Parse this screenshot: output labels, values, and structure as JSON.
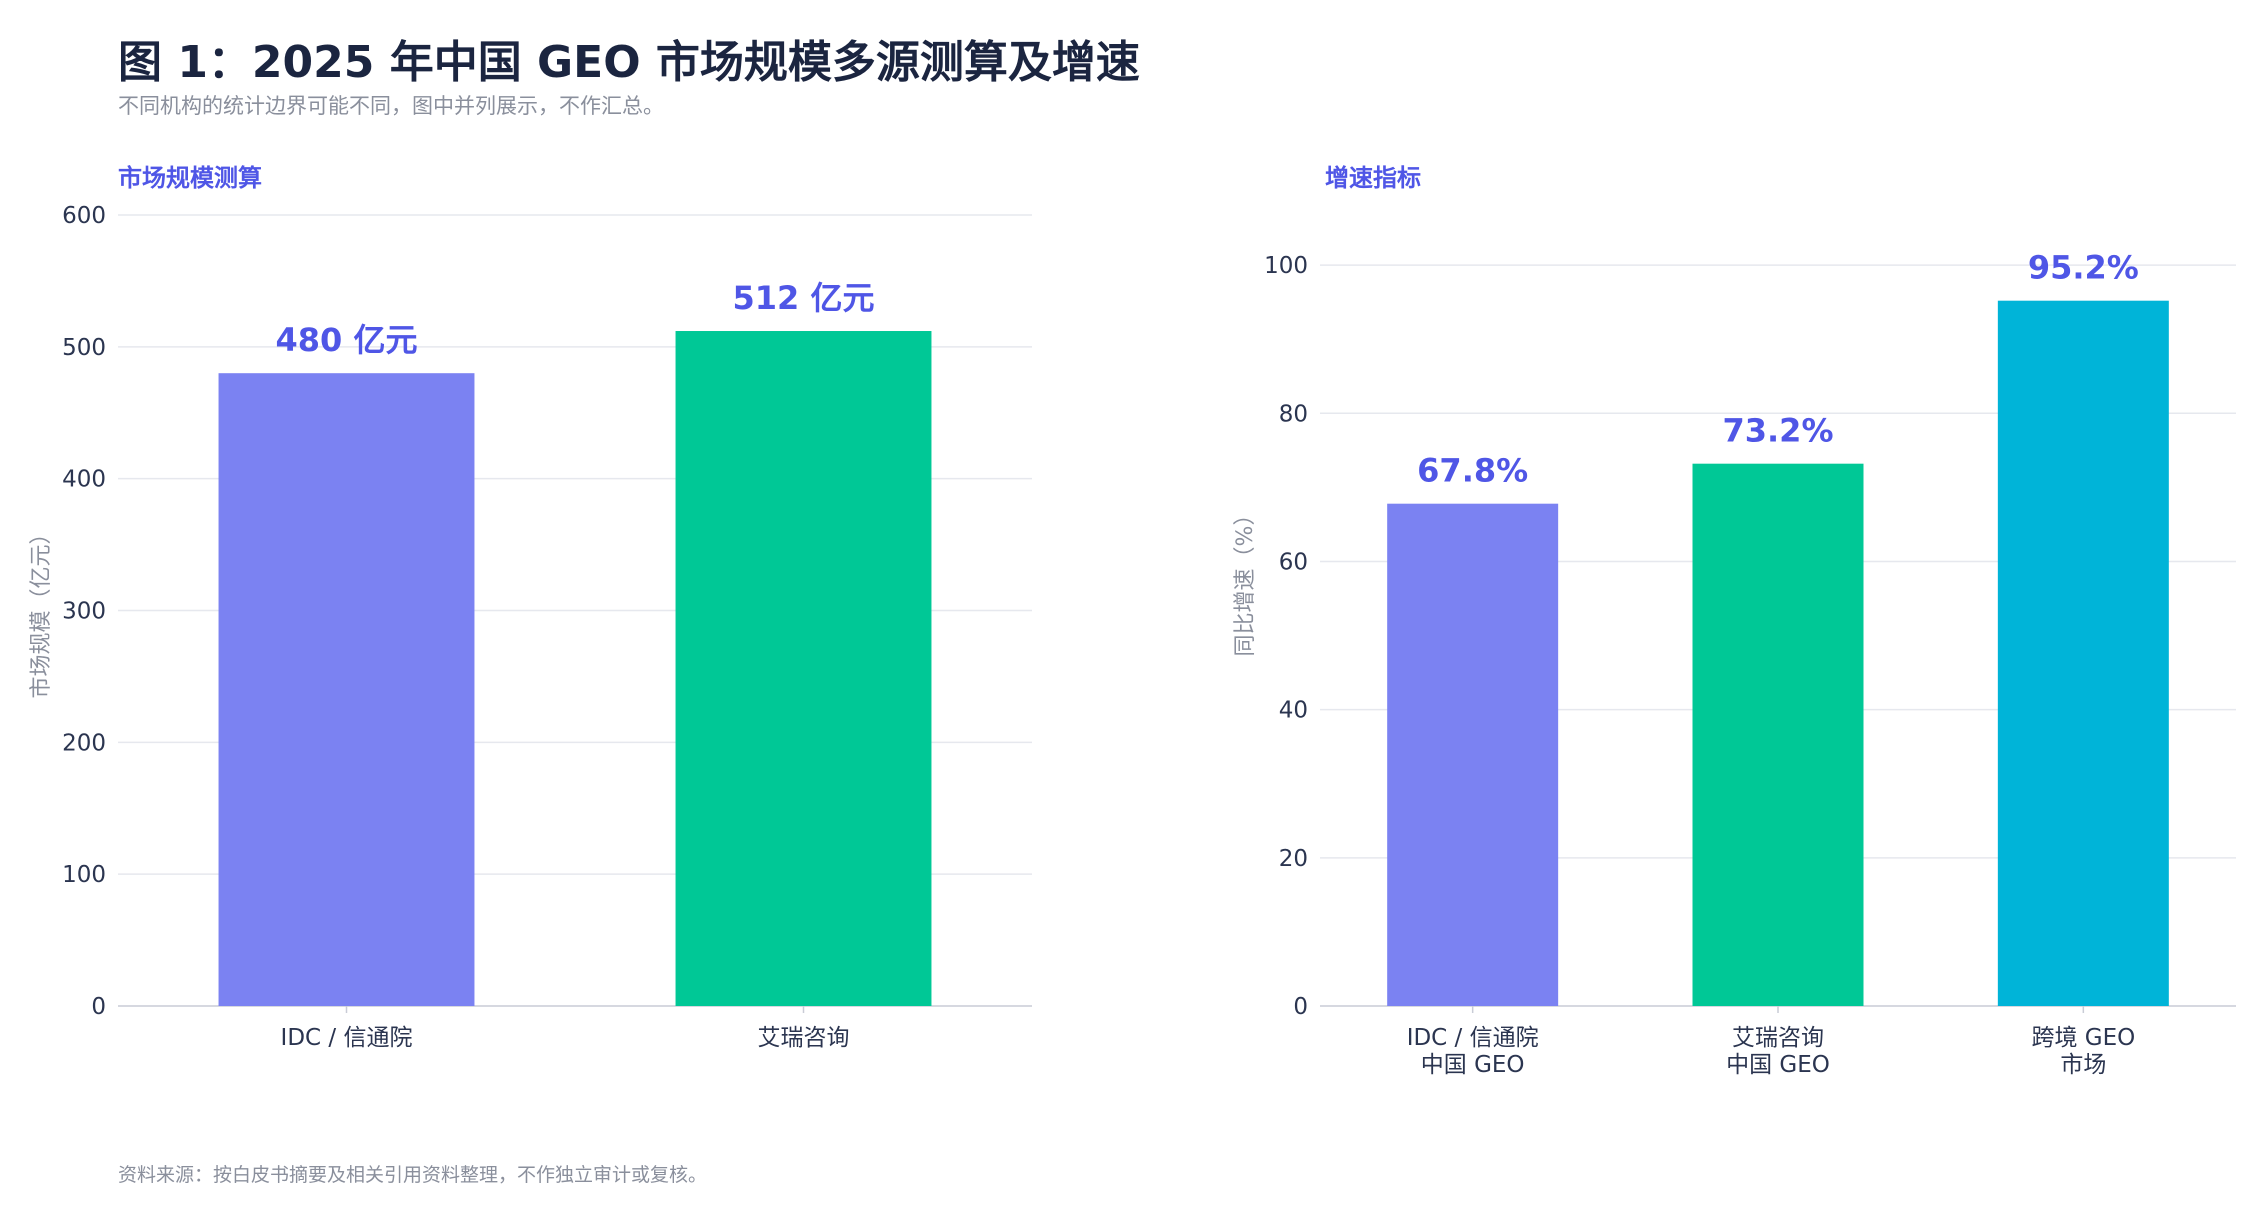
{
  "header": {
    "title": "图 1：2025 年中国 GEO 市场规模多源测算及增速",
    "subtitle": "不同机构的统计边界可能不同，图中并列展示，不作汇总。"
  },
  "footer": {
    "source": "资料来源：按白皮书摘要及相关引用资料整理，不作独立审计或复核。"
  },
  "chart_data": [
    {
      "type": "bar",
      "title": "市场规模测算",
      "ylabel": "市场规模（亿元）",
      "categories": [
        [
          "IDC / 信通院"
        ],
        [
          "艾瑞咨询"
        ]
      ],
      "values": [
        480,
        512
      ],
      "data_labels": [
        "480 亿元",
        "512 亿元"
      ],
      "colors": [
        "#7b82f2",
        "#00c896"
      ],
      "ylim": [
        0,
        600
      ],
      "yticks": [
        0,
        100,
        200,
        300,
        400,
        500,
        600
      ],
      "grid": true
    },
    {
      "type": "bar",
      "title": "增速指标",
      "ylabel": "同比增速（%）",
      "categories": [
        [
          "IDC / 信通院",
          "中国 GEO"
        ],
        [
          "艾瑞咨询",
          "中国 GEO"
        ],
        [
          "跨境 GEO",
          "市场"
        ]
      ],
      "values": [
        67.8,
        73.2,
        95.2
      ],
      "data_labels": [
        "67.8%",
        "73.2%",
        "95.2%"
      ],
      "colors": [
        "#7b82f2",
        "#00c896",
        "#00b4d8"
      ],
      "ylim": [
        0,
        115
      ],
      "yticks": [
        0,
        20,
        40,
        60,
        80,
        100
      ],
      "grid": true
    }
  ]
}
